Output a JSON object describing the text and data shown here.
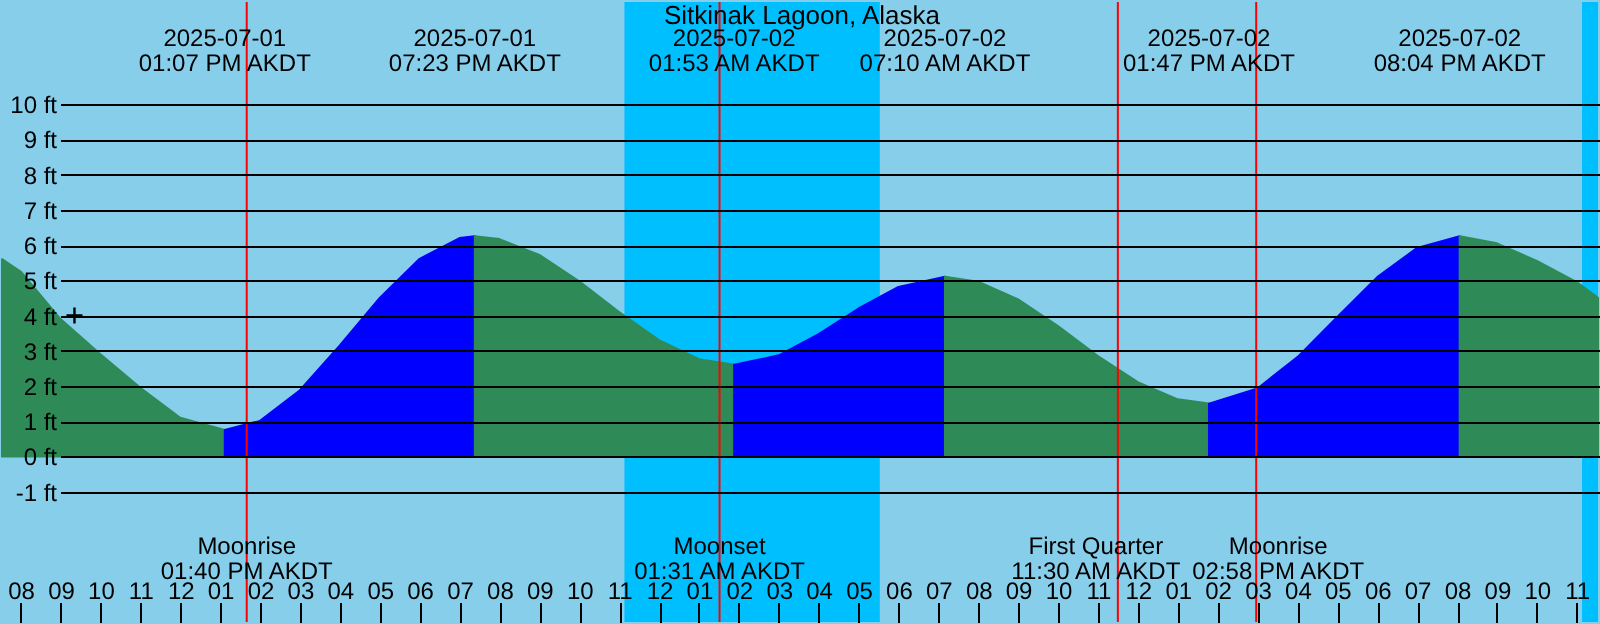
{
  "chart_data": {
    "type": "area",
    "title": "Sitkinak Lagoon, Alaska",
    "xlim": [
      "2025-07-01T07:32",
      "2025-07-02T23:32"
    ],
    "ylim": [
      -4.7,
      12.9
    ],
    "xticks": [
      {
        "value": "2025-07-01T08:00",
        "label": "08"
      },
      {
        "value": "2025-07-01T09:00",
        "label": "09"
      },
      {
        "value": "2025-07-01T10:00",
        "label": "10"
      },
      {
        "value": "2025-07-01T11:00",
        "label": "11"
      },
      {
        "value": "2025-07-01T12:00",
        "label": "12"
      },
      {
        "value": "2025-07-01T13:00",
        "label": "01"
      },
      {
        "value": "2025-07-01T14:00",
        "label": "02"
      },
      {
        "value": "2025-07-01T15:00",
        "label": "03"
      },
      {
        "value": "2025-07-01T16:00",
        "label": "04"
      },
      {
        "value": "2025-07-01T17:00",
        "label": "05"
      },
      {
        "value": "2025-07-01T18:00",
        "label": "06"
      },
      {
        "value": "2025-07-01T19:00",
        "label": "07"
      },
      {
        "value": "2025-07-01T20:00",
        "label": "08"
      },
      {
        "value": "2025-07-01T21:00",
        "label": "09"
      },
      {
        "value": "2025-07-01T22:00",
        "label": "10"
      },
      {
        "value": "2025-07-01T23:00",
        "label": "11"
      },
      {
        "value": "2025-07-02T00:00",
        "label": "12"
      },
      {
        "value": "2025-07-02T01:00",
        "label": "01"
      },
      {
        "value": "2025-07-02T02:00",
        "label": "02"
      },
      {
        "value": "2025-07-02T03:00",
        "label": "03"
      },
      {
        "value": "2025-07-02T04:00",
        "label": "04"
      },
      {
        "value": "2025-07-02T05:00",
        "label": "05"
      },
      {
        "value": "2025-07-02T06:00",
        "label": "06"
      },
      {
        "value": "2025-07-02T07:00",
        "label": "07"
      },
      {
        "value": "2025-07-02T08:00",
        "label": "08"
      },
      {
        "value": "2025-07-02T09:00",
        "label": "09"
      },
      {
        "value": "2025-07-02T10:00",
        "label": "10"
      },
      {
        "value": "2025-07-02T11:00",
        "label": "11"
      },
      {
        "value": "2025-07-02T12:00",
        "label": "12"
      },
      {
        "value": "2025-07-02T13:00",
        "label": "01"
      },
      {
        "value": "2025-07-02T14:00",
        "label": "02"
      },
      {
        "value": "2025-07-02T15:00",
        "label": "03"
      },
      {
        "value": "2025-07-02T16:00",
        "label": "04"
      },
      {
        "value": "2025-07-02T17:00",
        "label": "05"
      },
      {
        "value": "2025-07-02T18:00",
        "label": "06"
      },
      {
        "value": "2025-07-02T19:00",
        "label": "07"
      },
      {
        "value": "2025-07-02T20:00",
        "label": "08"
      },
      {
        "value": "2025-07-02T21:00",
        "label": "09"
      },
      {
        "value": "2025-07-02T22:00",
        "label": "10"
      },
      {
        "value": "2025-07-02T23:00",
        "label": "11"
      }
    ],
    "yticks": [
      {
        "value": -1,
        "label": "-1 ft"
      },
      {
        "value": 0,
        "label": "0 ft"
      },
      {
        "value": 1,
        "label": "1 ft"
      },
      {
        "value": 2,
        "label": "2 ft"
      },
      {
        "value": 3,
        "label": "3 ft"
      },
      {
        "value": 4,
        "label": "4 ft"
      },
      {
        "value": 5,
        "label": "5 ft"
      },
      {
        "value": 6,
        "label": "6 ft"
      },
      {
        "value": 7,
        "label": "7 ft"
      },
      {
        "value": 8,
        "label": "8 ft"
      },
      {
        "value": 9,
        "label": "9 ft"
      },
      {
        "value": 10,
        "label": "10 ft"
      }
    ],
    "grid": "y",
    "bands": [
      {
        "axis": "x",
        "from": "2025-07-01T23:08",
        "to": "2025-07-02T05:32",
        "color": "#00bfff"
      },
      {
        "axis": "x",
        "from": "2025-07-02T23:08",
        "to": "2025-07-02T23:32",
        "color": "#00bfff"
      }
    ],
    "ref_lines": [
      {
        "axis": "x",
        "value": "2025-07-01T13:40",
        "label": "Moonrise\n01:40 PM AKDT",
        "color": "#ff0000"
      },
      {
        "axis": "x",
        "value": "2025-07-02T01:31",
        "label": "Moonset\n01:31 AM AKDT",
        "color": "#ff0000"
      },
      {
        "axis": "x",
        "value": "2025-07-02T11:30",
        "label": "First Quarter\n11:30 AM AKDT",
        "color": "#ff0000"
      },
      {
        "axis": "x",
        "value": "2025-07-02T14:58",
        "label": "Moonrise\n02:58 PM AKDT",
        "color": "#ff0000"
      }
    ],
    "series": [
      {
        "color": "#2e8b57",
        "x": [
          "2025-07-01T07:32",
          "2025-07-01T08:00",
          "2025-07-01T09:00",
          "2025-07-01T10:00",
          "2025-07-01T11:00",
          "2025-07-01T12:00",
          "2025-07-01T13:07"
        ],
        "values": [
          5.6,
          5.25,
          3.9,
          2.9,
          1.95,
          1.1,
          0.75
        ]
      },
      {
        "color": "#0000ff",
        "x": [
          "2025-07-01T13:07",
          "2025-07-01T14:00",
          "2025-07-01T15:00",
          "2025-07-01T16:00",
          "2025-07-01T17:00",
          "2025-07-01T18:00",
          "2025-07-01T19:00",
          "2025-07-01T19:23"
        ],
        "values": [
          0.75,
          1.01,
          1.88,
          3.15,
          4.5,
          5.61,
          6.2,
          6.25
        ]
      },
      {
        "color": "#2e8b57",
        "x": [
          "2025-07-01T19:23",
          "2025-07-01T20:00",
          "2025-07-01T21:00",
          "2025-07-01T22:00",
          "2025-07-01T23:00",
          "2025-07-02T00:00",
          "2025-07-02T01:00",
          "2025-07-02T01:53"
        ],
        "values": [
          6.25,
          6.17,
          5.72,
          4.97,
          4.1,
          3.3,
          2.76,
          2.6
        ]
      },
      {
        "color": "#0000ff",
        "x": [
          "2025-07-02T01:53",
          "2025-07-02T03:00",
          "2025-07-02T04:00",
          "2025-07-02T05:00",
          "2025-07-02T06:00",
          "2025-07-02T07:10"
        ],
        "values": [
          2.6,
          2.87,
          3.47,
          4.2,
          4.81,
          5.1
        ]
      },
      {
        "color": "#2e8b57",
        "x": [
          "2025-07-02T07:10",
          "2025-07-02T08:00",
          "2025-07-02T09:00",
          "2025-07-02T10:00",
          "2025-07-02T11:00",
          "2025-07-02T12:00",
          "2025-07-02T13:00",
          "2025-07-02T13:47"
        ],
        "values": [
          5.1,
          4.96,
          4.46,
          3.7,
          2.85,
          2.11,
          1.62,
          1.5
        ]
      },
      {
        "color": "#0000ff",
        "x": [
          "2025-07-02T13:47",
          "2025-07-02T15:00",
          "2025-07-02T16:00",
          "2025-07-02T17:00",
          "2025-07-02T18:00",
          "2025-07-02T19:00",
          "2025-07-02T20:04"
        ],
        "values": [
          1.5,
          1.93,
          2.82,
          3.96,
          5.09,
          5.92,
          6.25
        ]
      },
      {
        "color": "#2e8b57",
        "x": [
          "2025-07-02T20:04",
          "2025-07-02T21:00",
          "2025-07-02T22:00",
          "2025-07-02T23:00",
          "2025-07-02T23:32"
        ],
        "values": [
          6.25,
          6.05,
          5.55,
          4.95,
          4.5
        ]
      },
      {
        "type": "scatter",
        "marker": "cross",
        "color": "#000000",
        "x": [
          "2025-07-01T09:21"
        ],
        "values": [
          4
        ]
      }
    ],
    "annotations": [
      "2025-07-01\n01:07 PM AKDT",
      "2025-07-01\n07:23 PM AKDT",
      "2025-07-02\n01:53 AM AKDT",
      "2025-07-02\n07:10 AM AKDT",
      "2025-07-02\n01:47 PM AKDT",
      "2025-07-02\n08:04 PM AKDT"
    ]
  }
}
